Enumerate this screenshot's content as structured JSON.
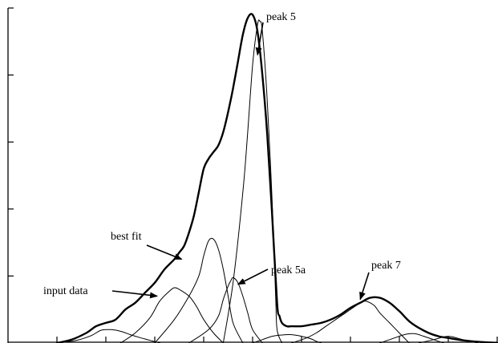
{
  "chart_data": {
    "type": "line",
    "title": "",
    "xlabel": "",
    "ylabel": "",
    "xlim": [
      0,
      100
    ],
    "ylim": [
      0,
      100
    ],
    "x_ticks": [
      10,
      20,
      30,
      40,
      50,
      60,
      70,
      80,
      90,
      100
    ],
    "y_ticks": [
      20,
      40,
      60,
      80,
      100
    ],
    "colors": {
      "line": "#000000",
      "background": "#ffffff"
    },
    "annotations": [
      {
        "id": "peak-5",
        "text": "peak 5",
        "at": [
          51,
          86
        ]
      },
      {
        "id": "best-fit",
        "text": "best fit",
        "at": [
          35.5,
          25
        ]
      },
      {
        "id": "peak-5a",
        "text": "peak 5a",
        "at": [
          47,
          17.5
        ]
      },
      {
        "id": "input-data",
        "text": "input data",
        "at": [
          30.5,
          14
        ]
      },
      {
        "id": "peak-7",
        "text": "peak 7",
        "at": [
          72,
          13
        ]
      }
    ],
    "series": [
      {
        "style": "thick",
        "x": [
          10,
          13,
          16,
          18,
          20,
          22,
          24,
          26,
          28,
          30,
          32,
          34,
          35,
          36,
          37,
          38,
          39,
          40,
          41,
          42,
          43,
          44,
          45,
          46,
          47,
          48,
          49,
          50,
          51,
          52,
          53,
          54,
          55,
          55.5,
          56,
          57,
          58,
          60,
          62,
          64,
          66,
          68,
          70,
          72,
          74,
          76,
          78,
          80,
          82,
          84,
          86,
          88,
          90,
          92,
          95,
          98,
          100
        ],
        "y": [
          0,
          1,
          3,
          5,
          6,
          7,
          10,
          12,
          15,
          18,
          22,
          25,
          27,
          29,
          33,
          38,
          45,
          52,
          55,
          57,
          59,
          63,
          69,
          76,
          84,
          92,
          97,
          98,
          93,
          80,
          62,
          38,
          12,
          8,
          6,
          5,
          5,
          5,
          5.5,
          6,
          7,
          8.5,
          10.5,
          12,
          13.5,
          13.5,
          12,
          9.5,
          6.5,
          4.5,
          3,
          2,
          1.5,
          1,
          0.5,
          0.2,
          0
        ]
      },
      {
        "style": "thin",
        "x": [
          10,
          14,
          17,
          19,
          21,
          23,
          25,
          27,
          29,
          31
        ],
        "y": [
          0,
          0.8,
          2.2,
          3.8,
          4,
          3.5,
          2.5,
          1.6,
          0.8,
          0
        ]
      },
      {
        "style": "thin",
        "x": [
          23,
          26,
          29,
          31,
          33,
          34,
          35,
          37,
          38.5,
          40,
          42,
          44
        ],
        "y": [
          0,
          3,
          7.5,
          12.5,
          15.5,
          16.5,
          16,
          14,
          11,
          7,
          3,
          0
        ]
      },
      {
        "style": "thin",
        "x": [
          30,
          34,
          37,
          39,
          40,
          41,
          42,
          43,
          44,
          45,
          46,
          48
        ],
        "y": [
          0,
          7,
          14,
          20,
          26,
          30.5,
          31,
          28,
          22,
          14,
          6,
          0
        ]
      },
      {
        "style": "thin",
        "x": [
          37,
          41,
          43,
          44,
          45,
          45.5,
          46,
          47,
          48,
          49,
          50,
          52
        ],
        "y": [
          0,
          4,
          8,
          13,
          17,
          18.5,
          19.5,
          18,
          14,
          9,
          4,
          0
        ]
      },
      {
        "style": "thin",
        "x": [
          44,
          46,
          48,
          49,
          50,
          51,
          51.5,
          52,
          53,
          54,
          54.7,
          55,
          56
        ],
        "y": [
          0,
          18,
          45,
          63,
          83,
          95,
          96,
          93,
          72,
          42,
          14,
          4,
          0
        ]
      },
      {
        "style": "thin",
        "x": [
          50,
          52,
          54,
          56,
          58,
          60,
          62,
          63,
          64
        ],
        "y": [
          0,
          1,
          2,
          2.4,
          2.5,
          2,
          1.2,
          0.5,
          0
        ]
      },
      {
        "style": "thin",
        "x": [
          58,
          61,
          63,
          65,
          67,
          69,
          71,
          72,
          73,
          74,
          75,
          76,
          78,
          80,
          82
        ],
        "y": [
          0,
          1.5,
          3,
          5,
          7,
          9,
          11,
          12,
          12.5,
          12,
          11,
          9,
          6,
          3,
          0
        ]
      },
      {
        "style": "thin",
        "x": [
          76,
          79,
          81,
          83,
          85,
          87,
          89
        ],
        "y": [
          0,
          1.5,
          2.5,
          2.8,
          2,
          1,
          0
        ]
      },
      {
        "style": "thin",
        "x": [
          84,
          87,
          89,
          90,
          91,
          93,
          96
        ],
        "y": [
          0,
          1,
          1.8,
          2,
          1.8,
          1,
          0
        ]
      }
    ]
  }
}
